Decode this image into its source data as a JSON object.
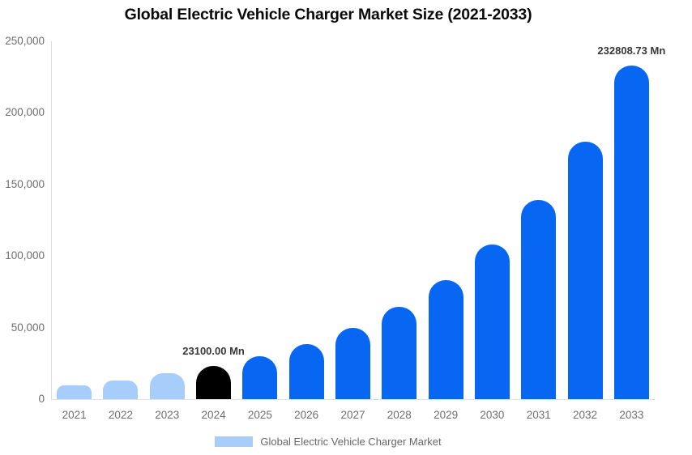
{
  "chart_data": {
    "type": "bar",
    "title": "Global Electric Vehicle Charger Market Size (2021-2033)",
    "categories": [
      "2021",
      "2022",
      "2023",
      "2024",
      "2025",
      "2026",
      "2027",
      "2028",
      "2029",
      "2030",
      "2031",
      "2032",
      "2033"
    ],
    "series": [
      {
        "name": "Global Electric Vehicle Charger Market",
        "values": [
          9600,
          13000,
          18000,
          23100,
          29860,
          38600,
          49900,
          64500,
          83380,
          107780,
          139330,
          180110,
          232808.73
        ]
      }
    ],
    "unit": "Mn",
    "ylim": [
      0,
      250000
    ],
    "ytick_step": 50000,
    "ytick_labels": [
      "0",
      "50,000",
      "100,000",
      "150,000",
      "200,000",
      "250,000"
    ],
    "grid": false,
    "legend": "Global Electric Vehicle Charger Market",
    "legend_position": "bottom",
    "bar_colors": [
      "#A7CDFA",
      "#A7CDFA",
      "#A7CDFA",
      "#000000",
      "#0767F3",
      "#0767F3",
      "#0767F3",
      "#0767F3",
      "#0767F3",
      "#0767F3",
      "#0767F3",
      "#0767F3",
      "#0767F3"
    ],
    "annotations": [
      {
        "category": "2024",
        "text": "23100.00 Mn"
      },
      {
        "category": "2033",
        "text": "232808.73 Mn"
      }
    ]
  },
  "colors": {
    "historical_bar": "#A7CDFA",
    "highlight_bar": "#000000",
    "forecast_bar": "#0767F3",
    "axis_text": "#6E6E6E",
    "annotation_text": "#383838",
    "title_text": "#0A0A0A"
  }
}
